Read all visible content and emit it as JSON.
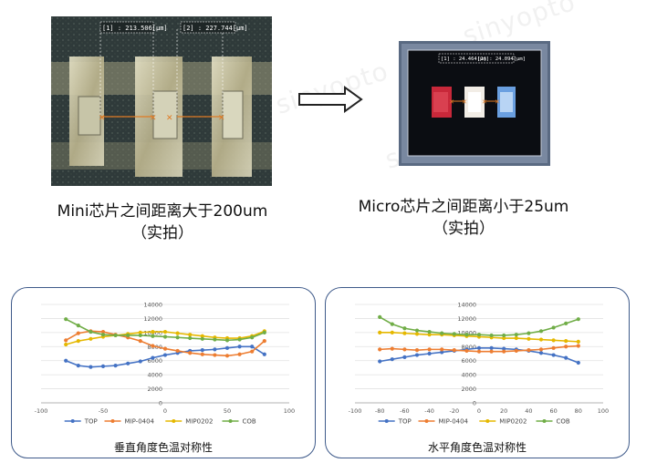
{
  "left_photo": {
    "measure_1": "[1] : 213.506[μm]",
    "measure_2": "[2] : 227.744[μm]"
  },
  "right_photo": {
    "measure_1": "[1] : 24.464[μm]",
    "measure_2": "[2] : 24.094[μm]"
  },
  "captions": {
    "left_line1": "Mini芯片之间距离大于200um",
    "left_line2": "（实拍）",
    "right_line1": "Micro芯片之间距离小于25um",
    "right_line2": "（实拍）"
  },
  "watermarks": [
    "sinyopto",
    "sinyopto",
    "sinyopto"
  ],
  "colors": {
    "TOP": "#4472c4",
    "MIP-0404": "#ed7d31",
    "MIP0202": "#e5b800",
    "COB": "#70ad47",
    "panel_border": "#3e5a8a"
  },
  "chart_data": [
    {
      "type": "line",
      "title": "垂直角度色温对称性",
      "xlabel": "",
      "ylabel": "",
      "xlim": [
        -100,
        100
      ],
      "ylim": [
        0,
        14000
      ],
      "x_ticks": [
        -100,
        -50,
        0,
        50,
        100
      ],
      "y_ticks": [
        0,
        2000,
        4000,
        6000,
        8000,
        10000,
        12000,
        14000
      ],
      "grid": true,
      "legend": "bottom",
      "x": [
        -80,
        -70,
        -60,
        -50,
        -40,
        -30,
        -20,
        -10,
        0,
        10,
        20,
        30,
        40,
        50,
        60,
        70,
        80
      ],
      "series": [
        {
          "name": "TOP",
          "values": [
            6000,
            5300,
            5100,
            5200,
            5300,
            5600,
            5900,
            6400,
            6800,
            7100,
            7400,
            7500,
            7600,
            7800,
            8000,
            8000,
            6900
          ]
        },
        {
          "name": "MIP-0404",
          "values": [
            8900,
            9900,
            10200,
            10100,
            9700,
            9300,
            8800,
            8100,
            7700,
            7400,
            7100,
            6900,
            6800,
            6700,
            6900,
            7300,
            8800
          ]
        },
        {
          "name": "MIP0202",
          "values": [
            8300,
            8800,
            9100,
            9400,
            9600,
            9800,
            10000,
            10100,
            10100,
            9900,
            9700,
            9500,
            9300,
            9200,
            9200,
            9500,
            10200
          ]
        },
        {
          "name": "COB",
          "values": [
            11900,
            11000,
            10100,
            9700,
            9600,
            9600,
            9600,
            9500,
            9400,
            9300,
            9200,
            9100,
            9000,
            8900,
            9000,
            9300,
            10000
          ]
        }
      ]
    },
    {
      "type": "line",
      "title": "水平角度色温对称性",
      "xlabel": "",
      "ylabel": "",
      "xlim": [
        -100,
        100
      ],
      "ylim": [
        0,
        14000
      ],
      "x_ticks": [
        -100,
        -80,
        -60,
        -40,
        -20,
        0,
        20,
        40,
        60,
        80,
        100
      ],
      "y_ticks": [
        0,
        2000,
        4000,
        6000,
        8000,
        10000,
        12000,
        14000
      ],
      "grid": true,
      "legend": "bottom",
      "x": [
        -80,
        -70,
        -60,
        -50,
        -40,
        -30,
        -20,
        -10,
        0,
        10,
        20,
        30,
        40,
        50,
        60,
        70,
        80
      ],
      "series": [
        {
          "name": "TOP",
          "values": [
            5900,
            6200,
            6500,
            6800,
            7000,
            7200,
            7400,
            7600,
            7800,
            7800,
            7700,
            7600,
            7400,
            7100,
            6800,
            6400,
            5700
          ]
        },
        {
          "name": "MIP-0404",
          "values": [
            7600,
            7700,
            7600,
            7500,
            7600,
            7600,
            7500,
            7400,
            7300,
            7300,
            7300,
            7400,
            7500,
            7600,
            7800,
            8000,
            8100
          ]
        },
        {
          "name": "MIP0202",
          "values": [
            10000,
            10000,
            9900,
            9800,
            9700,
            9700,
            9600,
            9500,
            9400,
            9300,
            9200,
            9200,
            9100,
            9000,
            8900,
            8800,
            8700
          ]
        },
        {
          "name": "COB",
          "values": [
            12200,
            11200,
            10600,
            10300,
            10100,
            9900,
            9800,
            9700,
            9700,
            9600,
            9600,
            9700,
            9900,
            10200,
            10700,
            11300,
            11900
          ]
        }
      ]
    }
  ]
}
